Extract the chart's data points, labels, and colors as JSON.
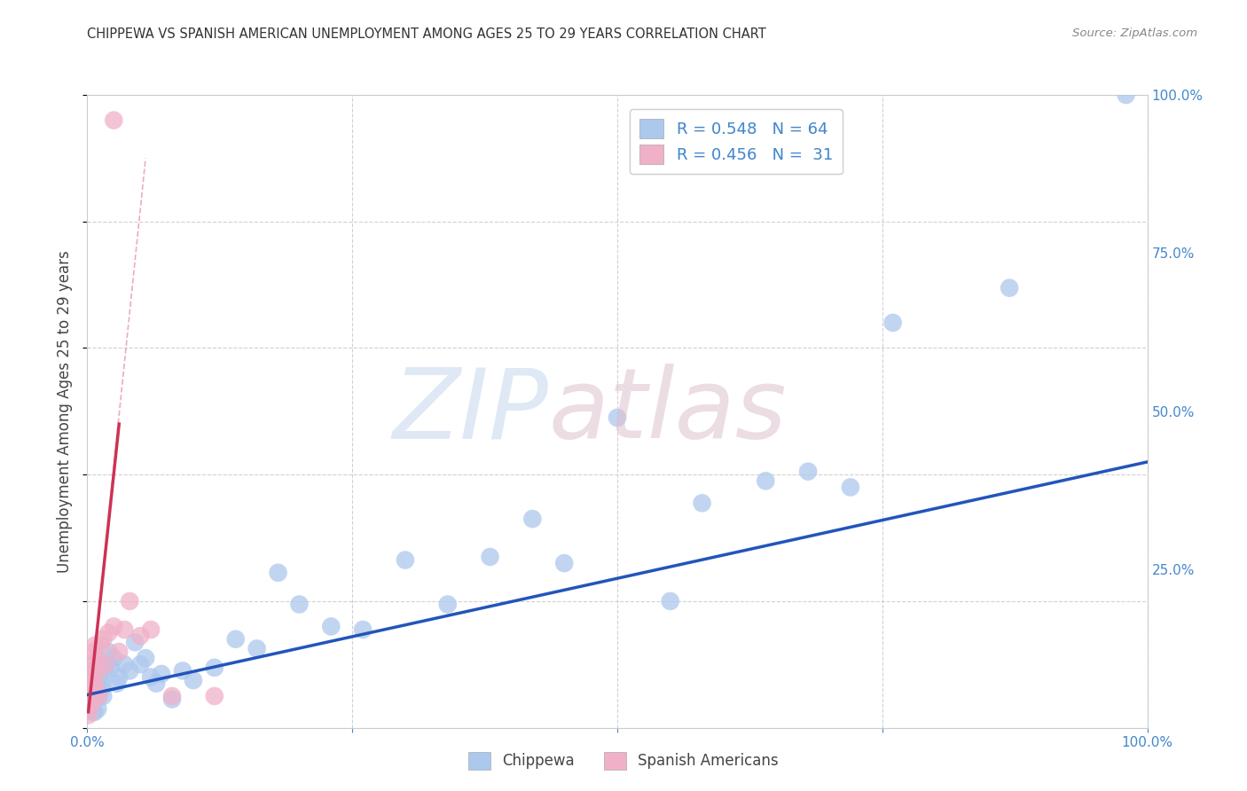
{
  "title": "CHIPPEWA VS SPANISH AMERICAN UNEMPLOYMENT AMONG AGES 25 TO 29 YEARS CORRELATION CHART",
  "source": "Source: ZipAtlas.com",
  "ylabel": "Unemployment Among Ages 25 to 29 years",
  "xlim": [
    0,
    1.0
  ],
  "ylim": [
    0,
    1.0
  ],
  "xticks": [
    0.0,
    0.25,
    0.5,
    0.75,
    1.0
  ],
  "xticklabels": [
    "0.0%",
    "",
    "",
    "",
    "100.0%"
  ],
  "yticks": [
    0.0,
    0.25,
    0.5,
    0.75,
    1.0
  ],
  "chippewa_R": "0.548",
  "chippewa_N": "64",
  "spanish_R": "0.456",
  "spanish_N": "31",
  "chippewa_color": "#adc8ed",
  "spanish_color": "#f0b0c8",
  "trendline_chippewa_color": "#2255bb",
  "trendline_spanish_color": "#cc3355",
  "tick_color": "#4488cc",
  "background_color": "#ffffff",
  "grid_color": "#cccccc",
  "chippewa_x": [
    0.001,
    0.002,
    0.002,
    0.003,
    0.003,
    0.004,
    0.004,
    0.005,
    0.005,
    0.005,
    0.006,
    0.006,
    0.007,
    0.007,
    0.008,
    0.008,
    0.009,
    0.009,
    0.01,
    0.01,
    0.011,
    0.012,
    0.013,
    0.014,
    0.015,
    0.016,
    0.018,
    0.02,
    0.022,
    0.025,
    0.028,
    0.03,
    0.035,
    0.04,
    0.045,
    0.05,
    0.055,
    0.06,
    0.065,
    0.07,
    0.08,
    0.09,
    0.1,
    0.12,
    0.14,
    0.16,
    0.18,
    0.2,
    0.23,
    0.26,
    0.3,
    0.34,
    0.38,
    0.42,
    0.45,
    0.5,
    0.55,
    0.58,
    0.64,
    0.68,
    0.72,
    0.76,
    0.87,
    0.98
  ],
  "chippewa_y": [
    0.04,
    0.06,
    0.055,
    0.03,
    0.05,
    0.07,
    0.04,
    0.025,
    0.035,
    0.065,
    0.045,
    0.08,
    0.025,
    0.055,
    0.06,
    0.09,
    0.055,
    0.08,
    0.03,
    0.07,
    0.05,
    0.08,
    0.06,
    0.07,
    0.05,
    0.09,
    0.1,
    0.12,
    0.095,
    0.11,
    0.07,
    0.08,
    0.1,
    0.09,
    0.135,
    0.1,
    0.11,
    0.08,
    0.07,
    0.085,
    0.045,
    0.09,
    0.075,
    0.095,
    0.14,
    0.125,
    0.245,
    0.195,
    0.16,
    0.155,
    0.265,
    0.195,
    0.27,
    0.33,
    0.26,
    0.49,
    0.2,
    0.355,
    0.39,
    0.405,
    0.38,
    0.64,
    0.695,
    1.0
  ],
  "spanish_x": [
    0.001,
    0.001,
    0.002,
    0.002,
    0.003,
    0.003,
    0.004,
    0.004,
    0.005,
    0.005,
    0.006,
    0.006,
    0.007,
    0.007,
    0.008,
    0.009,
    0.01,
    0.011,
    0.013,
    0.015,
    0.017,
    0.02,
    0.025,
    0.03,
    0.035,
    0.04,
    0.05,
    0.06,
    0.08,
    0.12,
    0.025
  ],
  "spanish_y": [
    0.02,
    0.04,
    0.03,
    0.06,
    0.055,
    0.07,
    0.04,
    0.09,
    0.05,
    0.08,
    0.1,
    0.12,
    0.07,
    0.13,
    0.06,
    0.11,
    0.09,
    0.05,
    0.13,
    0.14,
    0.1,
    0.15,
    0.16,
    0.12,
    0.155,
    0.2,
    0.145,
    0.155,
    0.05,
    0.05,
    0.96
  ],
  "trendline_blue_x0": 0.0,
  "trendline_blue_y0": 0.052,
  "trendline_blue_x1": 1.0,
  "trendline_blue_y1": 0.42,
  "trendline_pink_solid_x0": 0.001,
  "trendline_pink_solid_y0": 0.025,
  "trendline_pink_solid_x1": 0.03,
  "trendline_pink_solid_y1": 0.48,
  "trendline_pink_dash_x0": 0.001,
  "trendline_pink_dash_y0": 0.025,
  "trendline_pink_dash_x1": 0.055,
  "trendline_pink_dash_y1": 0.9
}
